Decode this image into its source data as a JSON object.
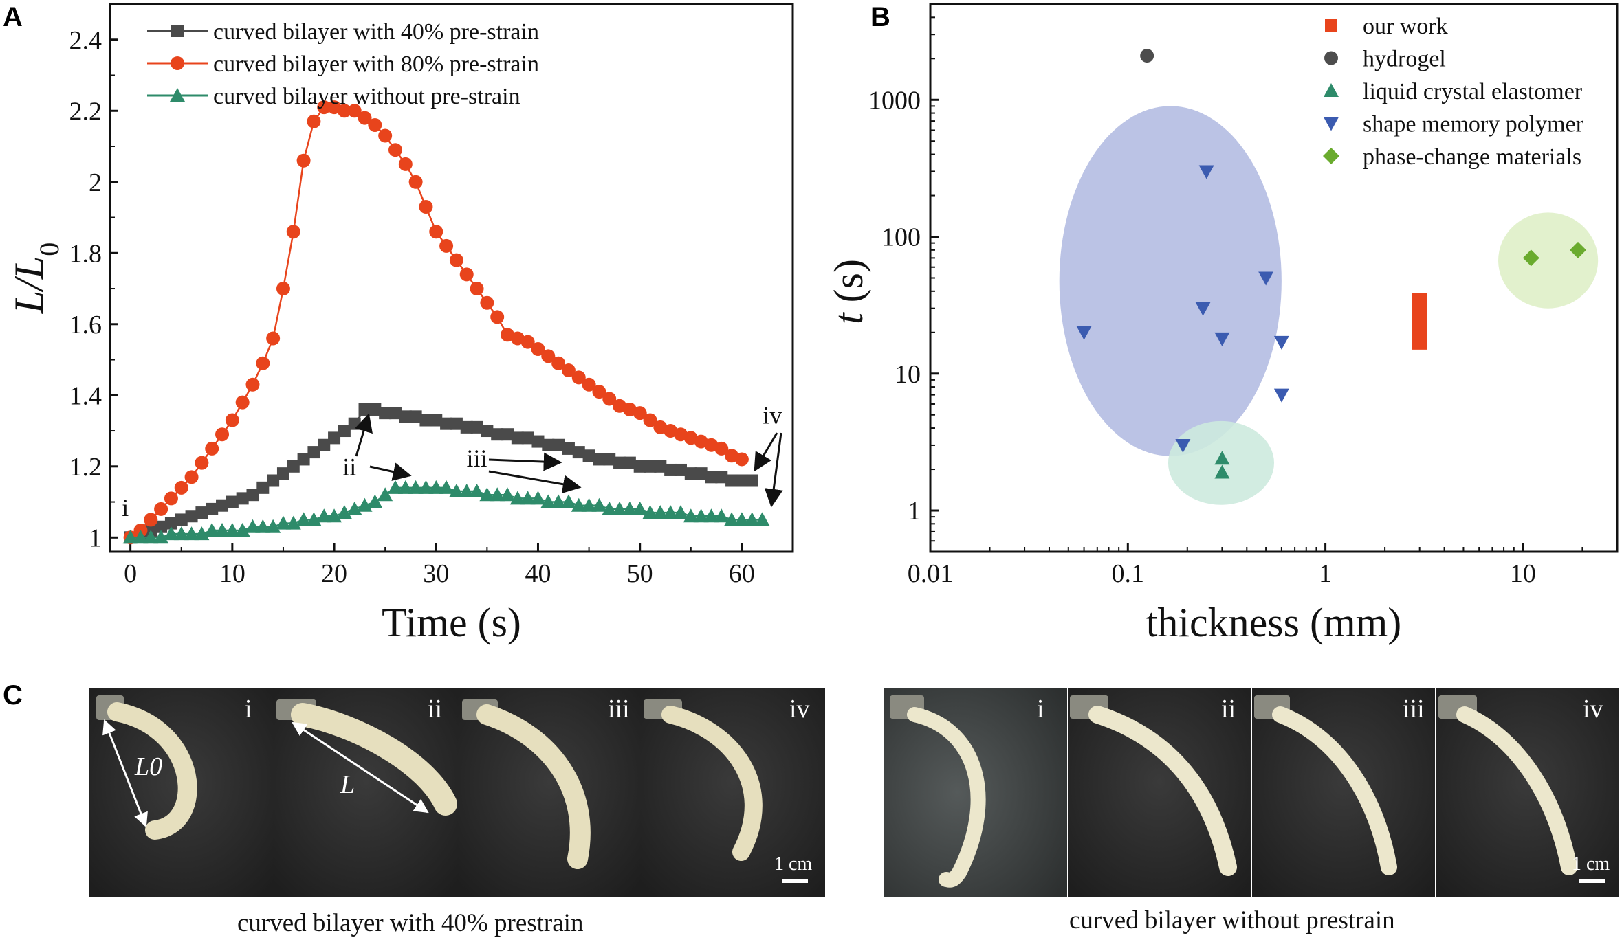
{
  "panel_labels": {
    "a": "A",
    "b": "B",
    "c": "C"
  },
  "chart_data": [
    {
      "type": "line",
      "panel": "A",
      "title": "",
      "xlabel": "Time (s)",
      "ylabel": "L/L0",
      "ylabel_main": "L/L",
      "ylabel_sub": "0",
      "xlim": [
        -2,
        65
      ],
      "ylim": [
        0.96,
        2.5
      ],
      "xticks": [
        0,
        10,
        20,
        30,
        40,
        50,
        60
      ],
      "xtick_labels": [
        "0",
        "10",
        "20",
        "30",
        "40",
        "50",
        "60"
      ],
      "yticks": [
        1,
        1.2,
        1.4,
        1.6,
        1.8,
        2,
        2.2,
        2.4
      ],
      "ytick_labels": [
        "1",
        "1.2",
        "1.4",
        "1.6",
        "1.8",
        "2",
        "2.2",
        "2.4"
      ],
      "legend_position": "top-left",
      "series": [
        {
          "name": "curved bilayer with 40% pre-strain",
          "color": "#4a4a4a",
          "marker": "square",
          "x": [
            0,
            1,
            2,
            3,
            4,
            5,
            6,
            7,
            8,
            9,
            10,
            11,
            12,
            13,
            14,
            15,
            16,
            17,
            18,
            19,
            20,
            21,
            22,
            23,
            24,
            25,
            26,
            27,
            28,
            29,
            30,
            31,
            32,
            33,
            34,
            35,
            36,
            37,
            38,
            39,
            40,
            41,
            42,
            43,
            44,
            45,
            46,
            47,
            48,
            49,
            50,
            51,
            52,
            53,
            54,
            55,
            56,
            57,
            58,
            59,
            60,
            61
          ],
          "y": [
            1.0,
            1.01,
            1.02,
            1.03,
            1.04,
            1.05,
            1.06,
            1.07,
            1.08,
            1.09,
            1.1,
            1.11,
            1.12,
            1.14,
            1.16,
            1.18,
            1.2,
            1.22,
            1.24,
            1.26,
            1.28,
            1.3,
            1.32,
            1.36,
            1.36,
            1.35,
            1.35,
            1.34,
            1.34,
            1.33,
            1.33,
            1.32,
            1.32,
            1.31,
            1.31,
            1.3,
            1.29,
            1.29,
            1.28,
            1.28,
            1.27,
            1.26,
            1.26,
            1.25,
            1.24,
            1.23,
            1.22,
            1.22,
            1.21,
            1.21,
            1.2,
            1.2,
            1.2,
            1.19,
            1.19,
            1.18,
            1.18,
            1.17,
            1.17,
            1.16,
            1.16,
            1.16
          ]
        },
        {
          "name": "curved bilayer with 80% pre-strain",
          "color": "#e8441c",
          "marker": "circle",
          "x": [
            0,
            1,
            2,
            3,
            4,
            5,
            6,
            7,
            8,
            9,
            10,
            11,
            12,
            13,
            14,
            15,
            16,
            17,
            18,
            19,
            20,
            21,
            22,
            23,
            24,
            25,
            26,
            27,
            28,
            29,
            30,
            31,
            32,
            33,
            34,
            35,
            36,
            37,
            38,
            39,
            40,
            41,
            42,
            43,
            44,
            45,
            46,
            47,
            48,
            49,
            50,
            51,
            52,
            53,
            54,
            55,
            56,
            57,
            58,
            59,
            60
          ],
          "y": [
            1.0,
            1.02,
            1.05,
            1.08,
            1.11,
            1.14,
            1.17,
            1.21,
            1.25,
            1.29,
            1.33,
            1.38,
            1.43,
            1.49,
            1.56,
            1.7,
            1.86,
            2.06,
            2.17,
            2.21,
            2.21,
            2.2,
            2.2,
            2.18,
            2.16,
            2.13,
            2.09,
            2.05,
            2.0,
            1.93,
            1.86,
            1.82,
            1.78,
            1.74,
            1.7,
            1.66,
            1.62,
            1.57,
            1.56,
            1.55,
            1.53,
            1.51,
            1.49,
            1.47,
            1.45,
            1.43,
            1.41,
            1.39,
            1.37,
            1.36,
            1.35,
            1.33,
            1.31,
            1.3,
            1.29,
            1.28,
            1.27,
            1.26,
            1.25,
            1.23,
            1.22
          ]
        },
        {
          "name": "curved bilayer without pre-strain",
          "color": "#2e8b6a",
          "marker": "triangle",
          "x": [
            0,
            1,
            2,
            3,
            4,
            5,
            6,
            7,
            8,
            9,
            10,
            11,
            12,
            13,
            14,
            15,
            16,
            17,
            18,
            19,
            20,
            21,
            22,
            23,
            24,
            25,
            26,
            27,
            28,
            29,
            30,
            31,
            32,
            33,
            34,
            35,
            36,
            37,
            38,
            39,
            40,
            41,
            42,
            43,
            44,
            45,
            46,
            47,
            48,
            49,
            50,
            51,
            52,
            53,
            54,
            55,
            56,
            57,
            58,
            59,
            60,
            61,
            62
          ],
          "y": [
            1.0,
            1.0,
            1.0,
            1.0,
            1.01,
            1.01,
            1.01,
            1.01,
            1.02,
            1.02,
            1.02,
            1.02,
            1.03,
            1.03,
            1.03,
            1.04,
            1.04,
            1.05,
            1.05,
            1.06,
            1.06,
            1.07,
            1.08,
            1.09,
            1.1,
            1.12,
            1.14,
            1.14,
            1.14,
            1.14,
            1.14,
            1.14,
            1.13,
            1.13,
            1.13,
            1.12,
            1.12,
            1.12,
            1.11,
            1.11,
            1.11,
            1.1,
            1.1,
            1.1,
            1.09,
            1.09,
            1.09,
            1.08,
            1.08,
            1.08,
            1.08,
            1.07,
            1.07,
            1.07,
            1.07,
            1.06,
            1.06,
            1.06,
            1.06,
            1.05,
            1.05,
            1.05,
            1.05
          ]
        }
      ],
      "annotations": [
        {
          "text": "i",
          "x": -0.5,
          "y": 1.06
        },
        {
          "text": "ii",
          "x": 21.5,
          "y": 1.175
        },
        {
          "text": "iii",
          "x": 34,
          "y": 1.2
        },
        {
          "text": "iv",
          "x": 63,
          "y": 1.32
        }
      ]
    },
    {
      "type": "scatter",
      "panel": "B",
      "title": "",
      "xlabel": "thickness (mm)",
      "ylabel": "t (s)",
      "ylabel_italic": "t",
      "ylabel_unit": " (s)",
      "xscale": "log",
      "yscale": "log",
      "xlim": [
        0.01,
        30
      ],
      "ylim": [
        0.5,
        5000
      ],
      "xticks": [
        0.01,
        0.1,
        1,
        10
      ],
      "xtick_labels": [
        "0.01",
        "0.1",
        "1",
        "10"
      ],
      "yticks": [
        1,
        10,
        100,
        1000
      ],
      "ytick_labels": [
        "1",
        "10",
        "100",
        "1000"
      ],
      "legend_position": "top-right",
      "series": [
        {
          "name": "our work",
          "color": "#e8441c",
          "marker": "square",
          "x": [
            3,
            3,
            3,
            3
          ],
          "y": [
            17,
            21,
            27,
            34
          ]
        },
        {
          "name": "hydrogel",
          "color": "#4d4d4d",
          "marker": "circle",
          "x": [
            0.125
          ],
          "y": [
            2100
          ]
        },
        {
          "name": "liquid crystal elastomer",
          "color": "#2e8b6a",
          "marker": "triangle-up",
          "x": [
            0.3,
            0.3
          ],
          "y": [
            2.4,
            1.9
          ]
        },
        {
          "name": "shape memory polymer",
          "color": "#3b5bb0",
          "marker": "triangle-down",
          "x": [
            0.06,
            0.25,
            0.24,
            0.3,
            0.5,
            0.6,
            0.6,
            0.19
          ],
          "y": [
            20,
            300,
            30,
            18,
            50,
            17,
            7,
            3
          ]
        },
        {
          "name": "phase-change materials",
          "color": "#6aab2e",
          "marker": "diamond",
          "x": [
            11,
            19
          ],
          "y": [
            70,
            80
          ]
        }
      ],
      "regions": [
        {
          "name": "shape memory polymer region",
          "color": "#b4bde2",
          "center_x": 0.14,
          "center_y": 35,
          "x_range": [
            0.045,
            0.6
          ],
          "y_range": [
            2.5,
            900
          ]
        },
        {
          "name": "liquid crystal elastomer region",
          "color": "#cdeade",
          "center_x": 0.3,
          "center_y": 2.2,
          "x_range": [
            0.16,
            0.55
          ],
          "y_range": [
            1.1,
            4.5
          ]
        },
        {
          "name": "phase-change materials region",
          "color": "#dff0c8",
          "center_x": 14,
          "center_y": 75,
          "x_range": [
            7.5,
            24
          ],
          "y_range": [
            30,
            150
          ]
        }
      ]
    }
  ],
  "panel_c": {
    "groups": [
      {
        "caption": "curved bilayer with 40% prestrain",
        "frames": [
          "i",
          "ii",
          "iii",
          "iv"
        ],
        "scale_bar": "1 cm",
        "annotation_L0": "L0",
        "annotation_L": "L"
      },
      {
        "caption": "curved bilayer without prestrain",
        "frames": [
          "i",
          "ii",
          "iii",
          "iv"
        ],
        "scale_bar": "1 cm"
      }
    ]
  },
  "colors": {
    "orange": "#e8441c",
    "gray": "#4a4a4a",
    "green": "#2e8b6a",
    "blue": "#3b5bb0",
    "lime": "#6aab2e",
    "photo_bg": "#2b2b2b"
  }
}
